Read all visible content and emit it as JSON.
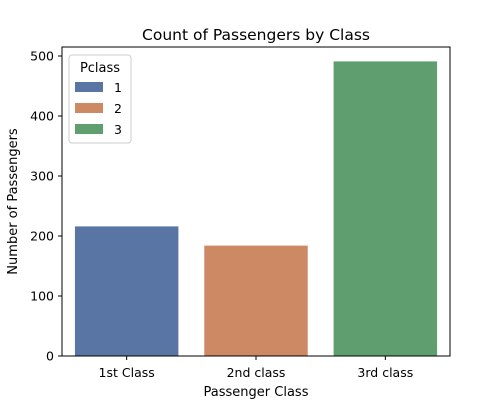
{
  "chart_data": {
    "type": "bar",
    "title": "Count of Passengers by Class",
    "xlabel": "Passenger Class",
    "ylabel": "Number of Passengers",
    "categories": [
      "1st Class",
      "2nd class",
      "3rd class"
    ],
    "values": [
      216,
      184,
      491
    ],
    "ylim": [
      0,
      515
    ],
    "yticks": [
      0,
      100,
      200,
      300,
      400,
      500
    ],
    "grid": false,
    "colors": [
      "#5975a4",
      "#cc8963",
      "#5f9e6e"
    ],
    "legend": {
      "title": "Pclass",
      "placement": "top-left",
      "entries": [
        "1",
        "2",
        "3"
      ]
    }
  }
}
